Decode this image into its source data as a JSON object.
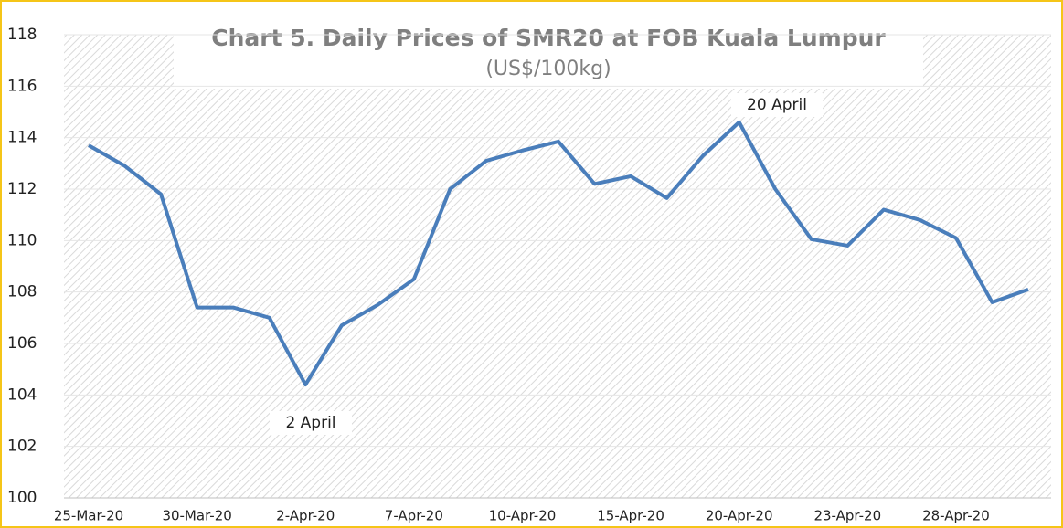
{
  "chart_data": {
    "type": "line",
    "title": "Chart 5. Daily Prices of SMR20 at FOB Kuala Lumpur",
    "subtitle": "(US$/100kg)",
    "annotations": [
      "2 April",
      "20 April"
    ],
    "categories": [
      "25-Mar-20",
      null,
      null,
      "30-Mar-20",
      null,
      null,
      "2-Apr-20",
      null,
      null,
      "7-Apr-20",
      null,
      null,
      "10-Apr-20",
      null,
      null,
      "15-Apr-20",
      null,
      null,
      "20-Apr-20",
      null,
      null,
      "23-Apr-20",
      null,
      null,
      "28-Apr-20",
      null,
      null
    ],
    "series": [
      {
        "name": "SMR20",
        "color": "#4a7ebb",
        "values": [
          113.7,
          112.9,
          111.8,
          107.4,
          107.4,
          107.0,
          104.4,
          106.7,
          107.5,
          108.5,
          112.0,
          113.1,
          113.5,
          113.85,
          112.2,
          112.5,
          111.65,
          113.3,
          114.6,
          112.0,
          110.05,
          109.8,
          111.2,
          110.8,
          110.1,
          107.6,
          108.1
        ]
      }
    ],
    "ylim": [
      100,
      118
    ],
    "yticks": [
      100,
      102,
      104,
      106,
      108,
      110,
      112,
      114,
      116,
      118
    ],
    "grid": true
  }
}
